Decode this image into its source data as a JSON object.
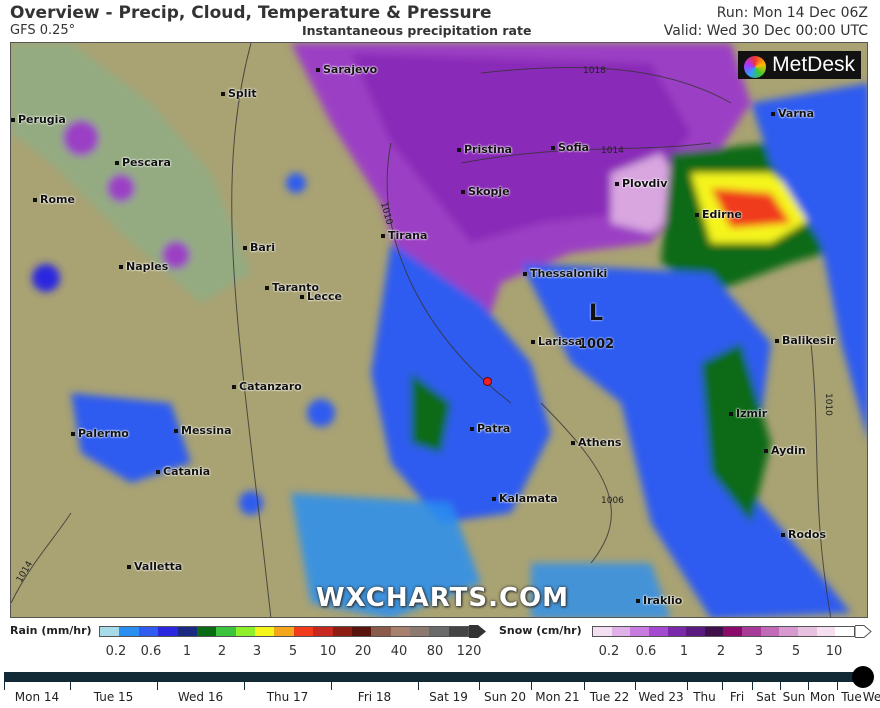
{
  "header": {
    "title": "Overview - Precip, Cloud, Temperature & Pressure",
    "model": "GFS 0.25°",
    "subtitle": "Instantaneous precipitation rate",
    "run": "Run: Mon 14 Dec 06Z",
    "valid": "Valid: Wed 30 Dec 00:00 UTC"
  },
  "map": {
    "logo": "MetDesk",
    "watermark": "WXCHARTS.COM",
    "low_marker": "L",
    "low_pressure": "1002",
    "isobars": [
      "1018",
      "1014",
      "1010",
      "1006",
      "1010",
      "1014"
    ],
    "cities": [
      "Sarajevo",
      "Split",
      "Perugia",
      "Pescara",
      "Rome",
      "Bari",
      "Naples",
      "Taranto",
      "Lecce",
      "Tirana",
      "Pristina",
      "Skopje",
      "Sofia",
      "Plovdiv",
      "Varna",
      "Edirne",
      "Thessaloniki",
      "Larissa",
      "Balikesir",
      "Catanzaro",
      "Palermo",
      "Messina",
      "Catania",
      "Patra",
      "Athens",
      "Izmir",
      "Aydin",
      "Kalamata",
      "Valletta",
      "Rodos",
      "Iraklio"
    ],
    "colors": {
      "sea_land": "#a9a273",
      "rain_light": "#3d7cf0",
      "snow": "#9b3fc4"
    }
  },
  "legend": {
    "rain_label": "Rain (mm/hr)",
    "rain_ticks": [
      "0.2",
      "0.6",
      "1",
      "2",
      "3",
      "5",
      "10",
      "20",
      "40",
      "80",
      "120"
    ],
    "rain_colors": [
      "#a8dbe8",
      "#2a8ff0",
      "#2f5bf0",
      "#2b28e0",
      "#1a2a80",
      "#0b6b12",
      "#3dc43d",
      "#8ef02a",
      "#f5f51a",
      "#f5a51a",
      "#f03a1a",
      "#c8281e",
      "#8c1e14",
      "#5a140e",
      "#8a5a4a",
      "#a88070",
      "#8c7a70",
      "#6a6a6a",
      "#444"
    ],
    "snow_label": "Snow (cm/hr)",
    "snow_ticks": [
      "0.2",
      "0.6",
      "1",
      "2",
      "3",
      "5",
      "10"
    ],
    "snow_colors": [
      "#f2e0f2",
      "#e0b0e8",
      "#c87ce0",
      "#a44ad0",
      "#7a2aa8",
      "#5a1a80",
      "#40104a",
      "#8a0a6a",
      "#a83a98",
      "#c06ab8",
      "#d898d0",
      "#e8c0e0",
      "#f5e0f0",
      "#fff"
    ]
  },
  "timeline": {
    "days": [
      "Mon 14",
      "Tue 15",
      "Wed 16",
      "Thu 17",
      "Fri 18",
      "Sat 19",
      "Sun 20",
      "Mon 21",
      "Tue 22",
      "Wed 23",
      "Thu",
      "Fri",
      "Sat",
      "Sun",
      "Mon",
      "Tue",
      "We"
    ],
    "position_fraction": 1.0
  }
}
